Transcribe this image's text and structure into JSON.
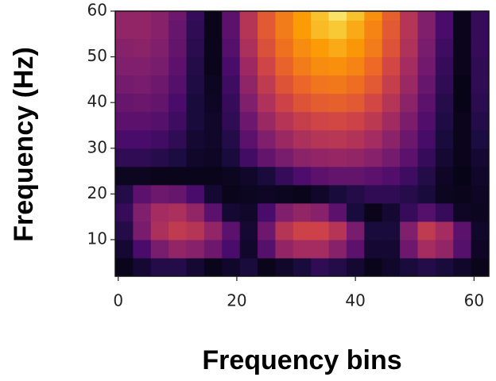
{
  "chart_data": {
    "type": "heatmap",
    "colormap": "inferno",
    "xlabel": "Frequency bins",
    "ylabel": "Frequency (Hz)",
    "xlim": [
      -0.5,
      62.5
    ],
    "ylim": [
      2,
      60
    ],
    "xticks": [
      0,
      20,
      40,
      60
    ],
    "yticks": [
      10,
      20,
      30,
      40,
      50,
      60
    ],
    "x": [
      1,
      4,
      7,
      10,
      13,
      16,
      19,
      22,
      25,
      28,
      31,
      34,
      37,
      40,
      43,
      46,
      49,
      52,
      55,
      58,
      61
    ],
    "y": [
      4,
      8,
      12,
      16,
      20,
      24,
      28,
      32,
      36,
      40,
      44,
      48,
      52,
      56,
      60
    ],
    "values": [
      [
        0.05,
        0.1,
        0.15,
        0.15,
        0.1,
        0.05,
        0.08,
        0.12,
        0.05,
        0.08,
        0.12,
        0.18,
        0.15,
        0.1,
        0.05,
        0.08,
        0.12,
        0.15,
        0.12,
        0.08,
        0.05
      ],
      [
        0.1,
        0.25,
        0.38,
        0.45,
        0.42,
        0.35,
        0.25,
        0.08,
        0.28,
        0.45,
        0.5,
        0.5,
        0.42,
        0.3,
        0.1,
        0.1,
        0.35,
        0.5,
        0.45,
        0.28,
        0.07
      ],
      [
        0.15,
        0.38,
        0.52,
        0.58,
        0.55,
        0.45,
        0.3,
        0.1,
        0.35,
        0.55,
        0.62,
        0.62,
        0.55,
        0.38,
        0.12,
        0.12,
        0.4,
        0.58,
        0.5,
        0.3,
        0.08
      ],
      [
        0.2,
        0.4,
        0.5,
        0.52,
        0.45,
        0.3,
        0.1,
        0.08,
        0.25,
        0.4,
        0.45,
        0.42,
        0.3,
        0.12,
        0.05,
        0.1,
        0.2,
        0.28,
        0.2,
        0.07,
        0.06
      ],
      [
        0.15,
        0.3,
        0.35,
        0.33,
        0.25,
        0.1,
        0.05,
        0.06,
        0.07,
        0.06,
        0.05,
        0.08,
        0.12,
        0.15,
        0.18,
        0.18,
        0.16,
        0.12,
        0.06,
        0.05,
        0.07
      ],
      [
        0.06,
        0.06,
        0.05,
        0.05,
        0.05,
        0.05,
        0.06,
        0.08,
        0.12,
        0.2,
        0.26,
        0.3,
        0.32,
        0.32,
        0.3,
        0.27,
        0.22,
        0.15,
        0.07,
        0.04,
        0.08
      ],
      [
        0.18,
        0.18,
        0.16,
        0.13,
        0.08,
        0.07,
        0.12,
        0.23,
        0.32,
        0.38,
        0.43,
        0.45,
        0.46,
        0.45,
        0.42,
        0.37,
        0.3,
        0.2,
        0.1,
        0.05,
        0.1
      ],
      [
        0.25,
        0.25,
        0.23,
        0.18,
        0.1,
        0.08,
        0.15,
        0.3,
        0.4,
        0.47,
        0.52,
        0.55,
        0.56,
        0.54,
        0.5,
        0.43,
        0.34,
        0.24,
        0.12,
        0.05,
        0.13
      ],
      [
        0.3,
        0.3,
        0.28,
        0.22,
        0.12,
        0.08,
        0.18,
        0.35,
        0.47,
        0.55,
        0.6,
        0.63,
        0.64,
        0.62,
        0.57,
        0.49,
        0.39,
        0.27,
        0.14,
        0.05,
        0.15
      ],
      [
        0.33,
        0.34,
        0.32,
        0.25,
        0.12,
        0.07,
        0.2,
        0.4,
        0.53,
        0.62,
        0.68,
        0.71,
        0.72,
        0.7,
        0.64,
        0.55,
        0.43,
        0.3,
        0.16,
        0.04,
        0.17
      ],
      [
        0.37,
        0.38,
        0.35,
        0.28,
        0.14,
        0.06,
        0.22,
        0.44,
        0.58,
        0.68,
        0.74,
        0.78,
        0.79,
        0.76,
        0.7,
        0.6,
        0.47,
        0.33,
        0.18,
        0.04,
        0.18
      ],
      [
        0.4,
        0.4,
        0.38,
        0.3,
        0.15,
        0.05,
        0.25,
        0.48,
        0.63,
        0.73,
        0.8,
        0.84,
        0.85,
        0.82,
        0.75,
        0.64,
        0.5,
        0.36,
        0.2,
        0.05,
        0.18
      ],
      [
        0.42,
        0.43,
        0.4,
        0.32,
        0.17,
        0.05,
        0.28,
        0.52,
        0.67,
        0.77,
        0.84,
        0.88,
        0.9,
        0.87,
        0.8,
        0.68,
        0.53,
        0.38,
        0.22,
        0.05,
        0.2
      ],
      [
        0.45,
        0.45,
        0.42,
        0.33,
        0.18,
        0.05,
        0.3,
        0.55,
        0.7,
        0.8,
        0.88,
        0.92,
        0.94,
        0.9,
        0.82,
        0.7,
        0.55,
        0.4,
        0.25,
        0.05,
        0.2
      ],
      [
        0.45,
        0.45,
        0.42,
        0.35,
        0.2,
        0.05,
        0.3,
        0.55,
        0.7,
        0.8,
        0.88,
        0.93,
        0.97,
        0.93,
        0.85,
        0.72,
        0.55,
        0.4,
        0.25,
        0.05,
        0.2
      ]
    ]
  }
}
